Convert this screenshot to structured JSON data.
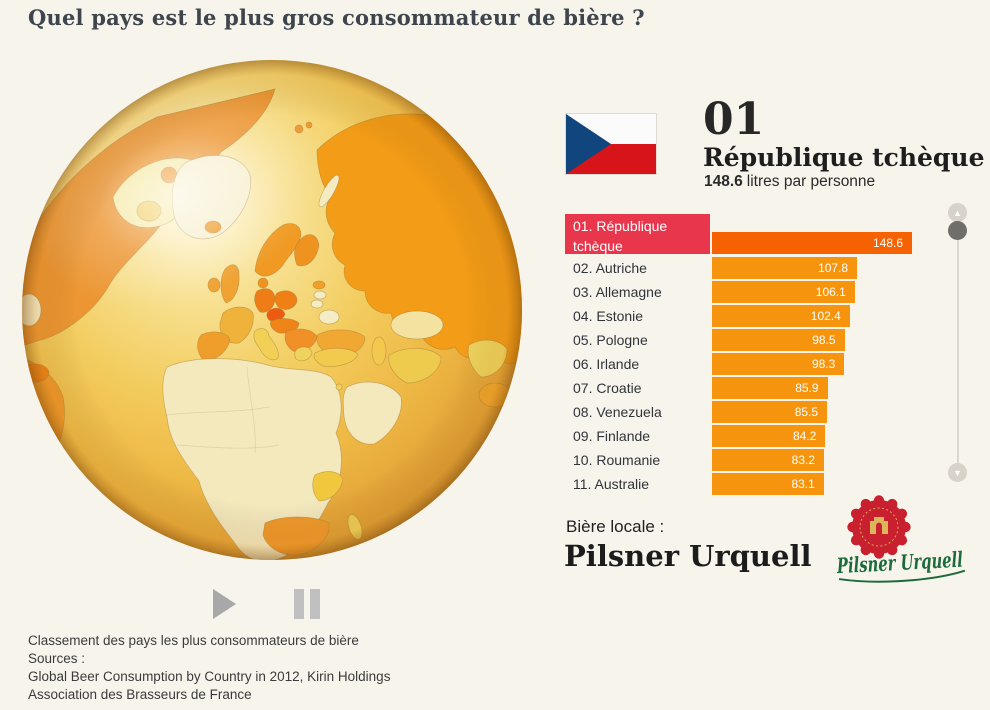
{
  "title": "Quel pays est le plus gros consommateur de bière ?",
  "header": {
    "rank": "01",
    "country": "République tchèque",
    "value": "148.6",
    "value_suffix": "litres par personne",
    "flag": "czech-republic"
  },
  "chart_data": {
    "type": "bar",
    "title": "Classement des pays les plus consommateurs de bière",
    "unit": "litres par personne",
    "orientation": "horizontal",
    "xlim": [
      0,
      148.6
    ],
    "max_value": 148.6,
    "ranking": [
      {
        "rank": 1,
        "label": "01. République tchèque",
        "country": "République tchèque",
        "value": 148.6,
        "selected": true
      },
      {
        "rank": 2,
        "label": "02. Autriche",
        "country": "Autriche",
        "value": 107.8,
        "selected": false
      },
      {
        "rank": 3,
        "label": "03. Allemagne",
        "country": "Allemagne",
        "value": 106.1,
        "selected": false
      },
      {
        "rank": 4,
        "label": "04. Estonie",
        "country": "Estonie",
        "value": 102.4,
        "selected": false
      },
      {
        "rank": 5,
        "label": "05. Pologne",
        "country": "Pologne",
        "value": 98.5,
        "selected": false
      },
      {
        "rank": 6,
        "label": "06. Irlande",
        "country": "Irlande",
        "value": 98.3,
        "selected": false
      },
      {
        "rank": 7,
        "label": "07. Croatie",
        "country": "Croatie",
        "value": 85.9,
        "selected": false
      },
      {
        "rank": 8,
        "label": "08. Venezuela",
        "country": "Venezuela",
        "value": 85.5,
        "selected": false
      },
      {
        "rank": 9,
        "label": "09. Finlande",
        "country": "Finlande",
        "value": 84.2,
        "selected": false
      },
      {
        "rank": 10,
        "label": "10. Roumanie",
        "country": "Roumanie",
        "value": 83.2,
        "selected": false
      },
      {
        "rank": 11,
        "label": "11. Australie",
        "country": "Australie",
        "value": 83.1,
        "selected": false,
        "clipped": true
      }
    ]
  },
  "local_beer": {
    "label": "Bière locale :",
    "name": "Pilsner Urquell"
  },
  "logo": {
    "text": "Pilsner Urquell"
  },
  "footer": {
    "lines": [
      "Classement des pays les plus consommateurs de bière",
      "Sources :",
      "Global Beer Consumption by Country in 2012, Kirin Holdings",
      "Association des Brasseurs de France"
    ]
  },
  "colors": {
    "background": "#f7f4ec",
    "selected_row": "#e8374d",
    "selected_bar": "#f66202",
    "bar": "#f7940d",
    "flag_blue": "#11457e",
    "flag_red": "#d7141a",
    "logo_red": "#c9202f",
    "logo_green": "#1c6b3d",
    "logo_gold": "#dcb65b"
  }
}
